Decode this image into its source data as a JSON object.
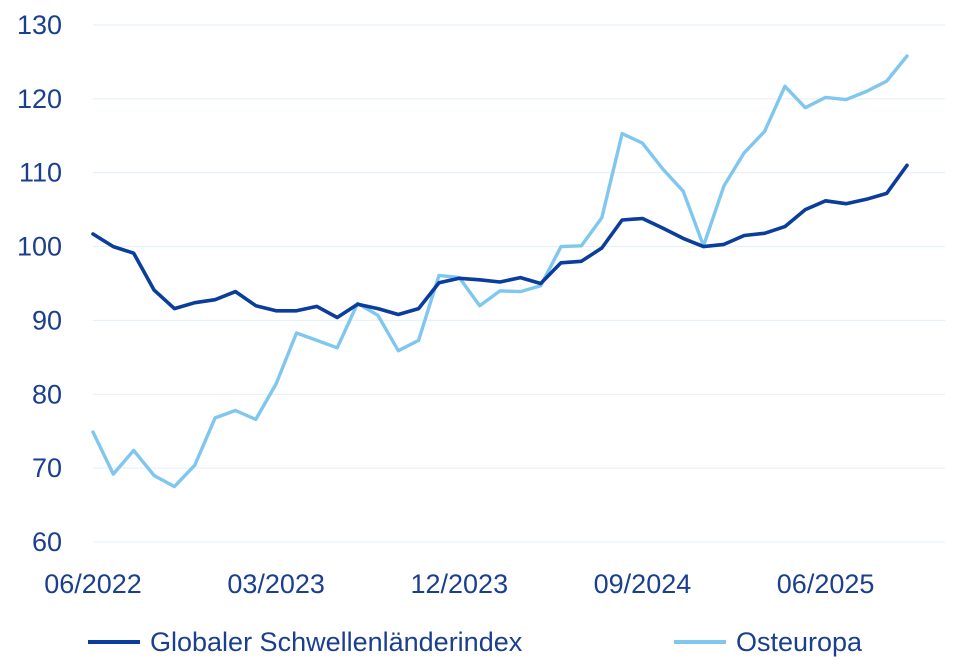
{
  "chart_data": {
    "type": "line",
    "title": "",
    "xlabel": "",
    "ylabel": "",
    "ylim": [
      60,
      130
    ],
    "yticks": [
      60,
      70,
      80,
      90,
      100,
      110,
      120,
      130
    ],
    "xtick_labels": [
      "06/2022",
      "03/2023",
      "12/2023",
      "09/2024",
      "06/2025"
    ],
    "grid": "horizontal",
    "legend": "bottom",
    "x": [
      "06/2022",
      "07/2022",
      "08/2022",
      "09/2022",
      "10/2022",
      "11/2022",
      "12/2022",
      "01/2023",
      "02/2023",
      "03/2023",
      "04/2023",
      "05/2023",
      "06/2023",
      "07/2023",
      "08/2023",
      "09/2023",
      "10/2023",
      "11/2023",
      "12/2023",
      "01/2024",
      "02/2024",
      "03/2024",
      "04/2024",
      "05/2024",
      "06/2024",
      "07/2024",
      "08/2024",
      "09/2024",
      "10/2024",
      "11/2024",
      "12/2024",
      "01/2025",
      "02/2025",
      "03/2025",
      "04/2025",
      "05/2025",
      "06/2025",
      "07/2025",
      "08/2025",
      "09/2025",
      "10/2025"
    ],
    "series": [
      {
        "name": "Globaler Schwellenländerindex",
        "color": "#0a3d9c",
        "values": [
          101.7,
          100.0,
          99.1,
          94.1,
          91.6,
          92.4,
          92.8,
          93.9,
          92.0,
          91.3,
          91.3,
          91.9,
          90.4,
          92.2,
          91.6,
          90.8,
          91.6,
          95.1,
          95.7,
          95.5,
          95.2,
          95.8,
          95.0,
          97.8,
          98.0,
          99.8,
          103.6,
          103.8,
          102.5,
          101.1,
          100.0,
          100.3,
          101.5,
          101.8,
          102.7,
          105.0,
          106.2,
          105.8,
          106.4,
          107.2,
          111.0
        ]
      },
      {
        "name": "Osteuropa",
        "color": "#7fc7ee",
        "values": [
          74.9,
          69.2,
          72.4,
          69.0,
          67.5,
          70.4,
          76.8,
          77.8,
          76.6,
          81.4,
          88.3,
          87.3,
          86.3,
          92.3,
          90.7,
          85.9,
          87.3,
          96.1,
          95.8,
          92.0,
          94.0,
          93.9,
          94.7,
          100.0,
          100.1,
          103.9,
          115.3,
          114.0,
          110.5,
          107.5,
          100.1,
          108.2,
          112.7,
          115.6,
          121.7,
          118.8,
          120.2,
          119.9,
          121.0,
          122.4,
          125.8
        ]
      }
    ]
  }
}
